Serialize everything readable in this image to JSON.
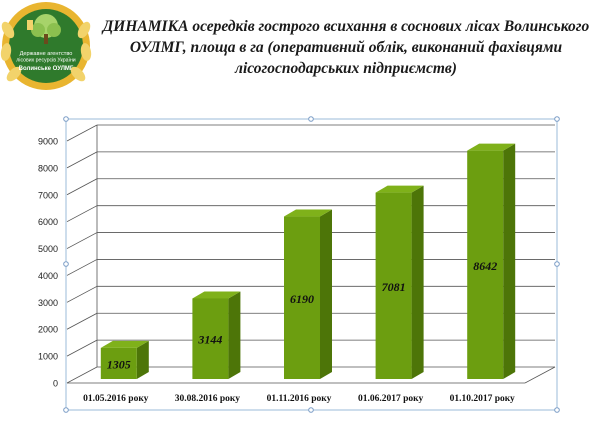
{
  "logo": {
    "line1": "Державне агентство",
    "line2": "лісових ресурсів України",
    "line3": "Волинське ОУЛМГ",
    "colors": {
      "ring": "#e9b530",
      "disc": "#2f7a2c",
      "text": "#ffffff"
    }
  },
  "header": {
    "title_lead": "ДИНАМІКА",
    "title_rest": " осередків гострого всихання в соснових лісах Волинського ОУЛМГ, площа в га (оперативний облік, виконаний фахівцями лісогосподарських підприємств)"
  },
  "chart_data": {
    "type": "bar",
    "categories": [
      "01.05.2016 року",
      "30.08.2016 року",
      "01.11.2016 року",
      "01.06.2017 року",
      "01.10.2017 року"
    ],
    "values": [
      1305,
      3144,
      6190,
      7081,
      8642
    ],
    "ylim": [
      0,
      9000
    ],
    "yticks": [
      0,
      1000,
      2000,
      3000,
      4000,
      5000,
      6000,
      7000,
      8000,
      9000
    ],
    "grid": true,
    "legend": "none",
    "title": "",
    "xlabel": "",
    "ylabel": "",
    "colors": {
      "bar": "#6c9e10",
      "bar_top": "#7fb11a",
      "bar_side": "#4d7508",
      "grid": "#555555",
      "frame": "#9bbbd9"
    }
  }
}
